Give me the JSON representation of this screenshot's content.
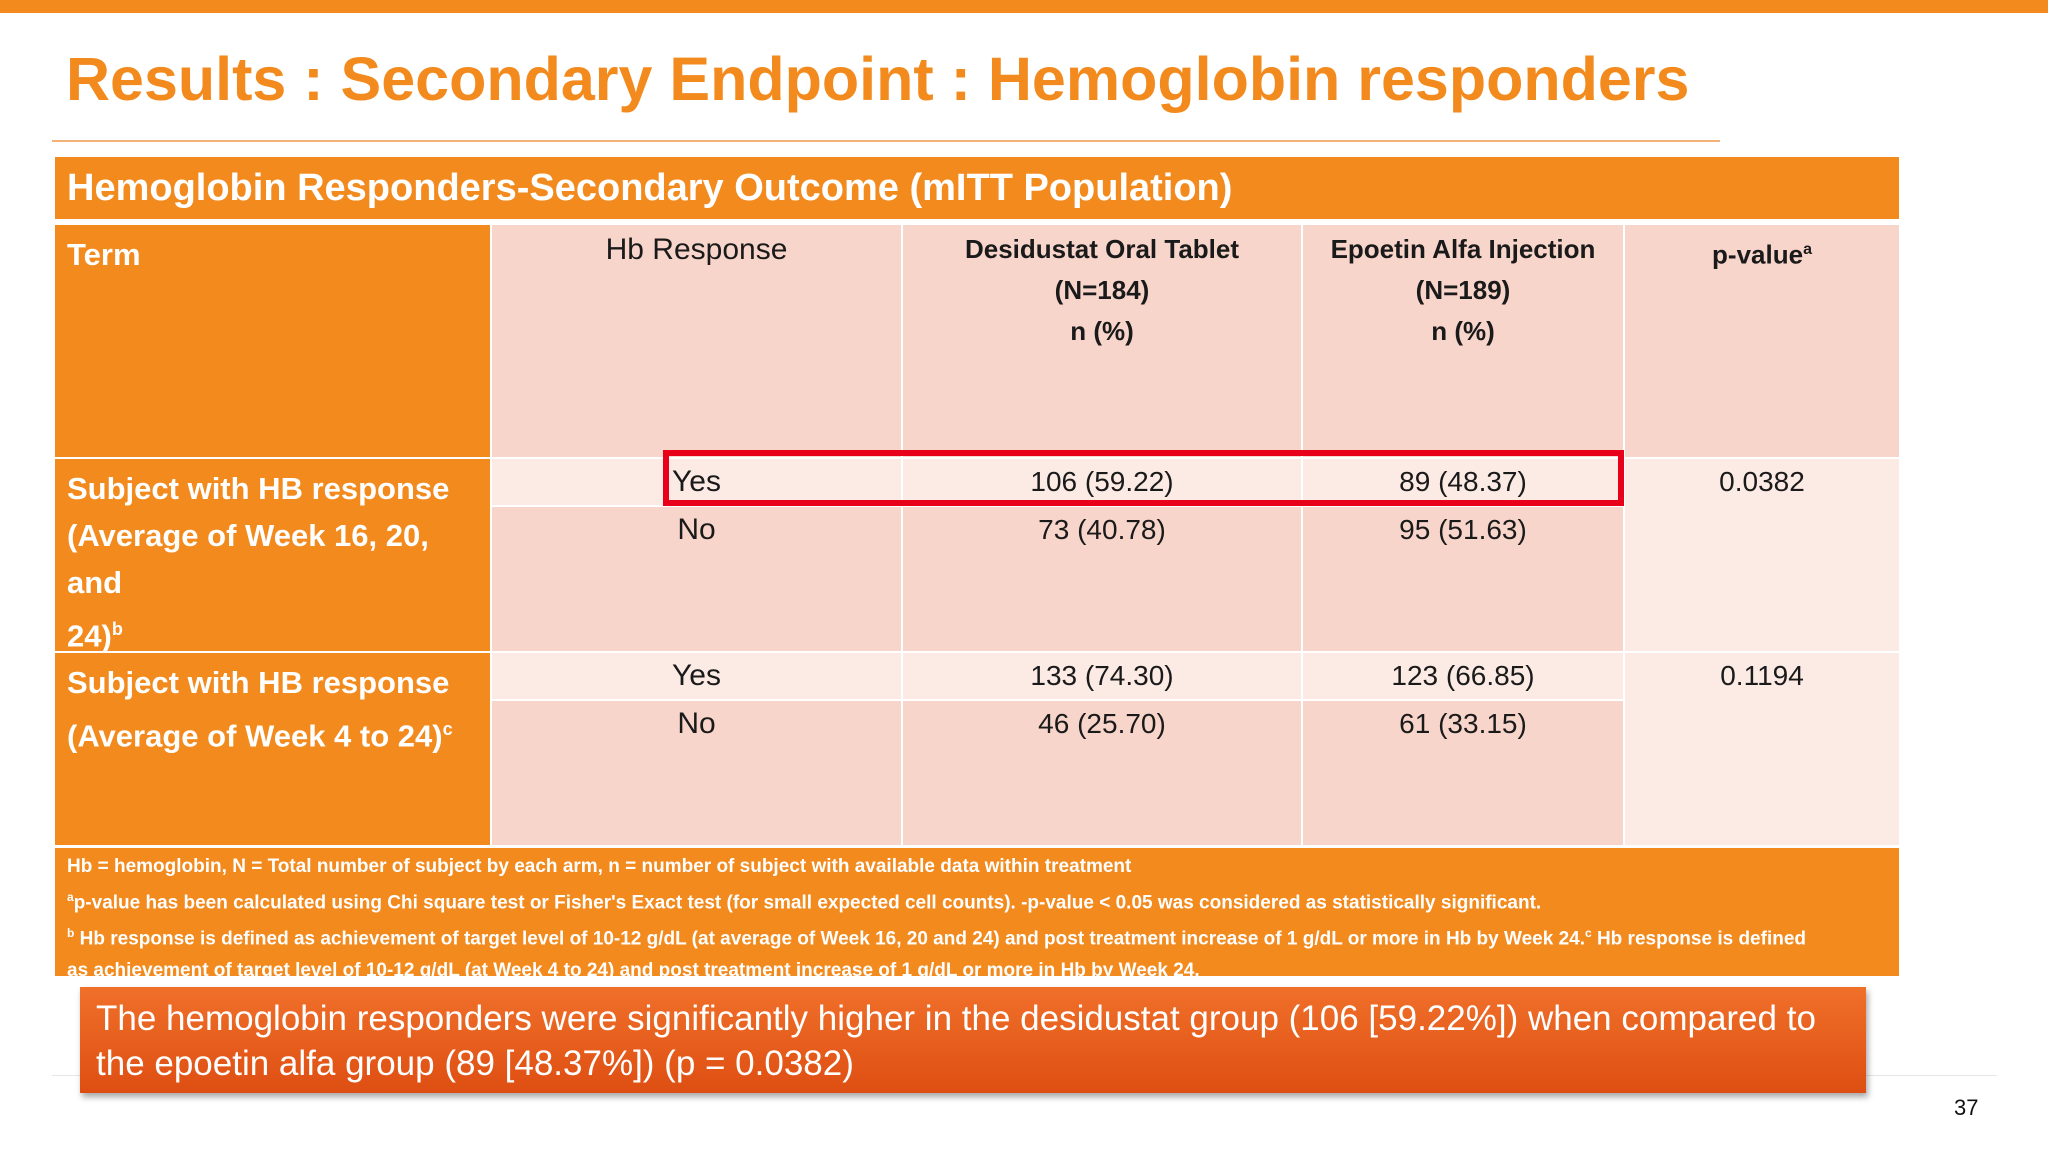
{
  "slide": {
    "title": "Results : Secondary Endpoint : Hemoglobin responders",
    "page_number": "37",
    "accent_color": "#F28A1E"
  },
  "table": {
    "header": "Hemoglobin Responders-Secondary Outcome (mITT Population)",
    "columns": {
      "term": "Term",
      "hb_response": "Hb Response",
      "desidustat": [
        "Desidustat Oral Tablet",
        "(N=184)",
        "n (%)"
      ],
      "epoetin": [
        "Epoetin Alfa Injection",
        "(N=189)",
        "n (%)"
      ],
      "pvalue": "p-value",
      "pvalue_sup": "a"
    },
    "rows": [
      {
        "term_lines": [
          "Subject with HB response",
          "(Average of Week 16, 20, and",
          "24)"
        ],
        "term_sup": "b",
        "yes": {
          "label": "Yes",
          "desidustat": "106 (59.22)",
          "epoetin": "89 (48.37)"
        },
        "no": {
          "label": "No",
          "desidustat": "73 (40.78)",
          "epoetin": "95 (51.63)"
        },
        "pvalue": "0.0382"
      },
      {
        "term_lines": [
          "Subject with HB response",
          "(Average of Week 4 to 24)"
        ],
        "term_sup": "c",
        "yes": {
          "label": "Yes",
          "desidustat": "133 (74.30)",
          "epoetin": "123 (66.85)"
        },
        "no": {
          "label": "No",
          "desidustat": "46 (25.70)",
          "epoetin": "61 (33.15)"
        },
        "pvalue": "0.1194"
      }
    ],
    "footnotes": {
      "line1": "Hb = hemoglobin, N = Total number of subject by each arm, n = number of subject with available data within treatment",
      "a_sup": "a",
      "a_text": "p-value has been calculated using Chi square test or Fisher's Exact test (for small expected cell counts). -p-value < 0.05 was considered as statistically significant.",
      "b_sup": "b",
      "b_text": " Hb response is defined as achievement of target level of 10-12 g/dL (at average of Week 16, 20 and 24) and post treatment increase of 1 g/dL or more in Hb by Week 24.",
      "c_sup": "c",
      "c_text": " Hb response is defined",
      "c_text2": "as achievement of target level of 10-12 g/dL (at Week 4 to 24) and post treatment increase of 1 g/dL or more in Hb by Week 24."
    }
  },
  "callout": {
    "line1": "The hemoglobin responders were significantly higher in the desidustat group (106 [59.22%]) when compared to",
    "line2": "the epoetin alfa group (89 [48.37%]) (p = 0.0382)"
  }
}
